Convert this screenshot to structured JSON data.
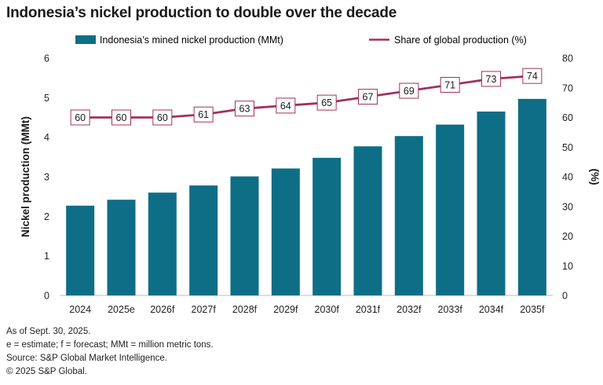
{
  "title": "Indonesia’s nickel production to double over the decade",
  "footnotes": [
    "As of Sept. 30, 2025.",
    "e = estimate; f = forecast; MMt = million metric tons.",
    "Source: S&P Global Market Intelligence.",
    "© 2025 S&P Global."
  ],
  "colors": {
    "bar": "#0e6e86",
    "line": "#a3305e",
    "label_border": "#a3305e"
  },
  "chart_data": {
    "type": "bar",
    "title": "Indonesia’s nickel production to double over the decade",
    "categories": [
      "2024",
      "2025e",
      "2026f",
      "2027f",
      "2028f",
      "2029f",
      "2030f",
      "2031f",
      "2032f",
      "2033f",
      "2034f",
      "2035f"
    ],
    "series": [
      {
        "name": "Indonesia’s mined nickel production (MMt)",
        "type": "bar",
        "axis": "left",
        "values": [
          2.27,
          2.42,
          2.6,
          2.78,
          3.01,
          3.21,
          3.48,
          3.77,
          4.03,
          4.32,
          4.65,
          4.97
        ]
      },
      {
        "name": "Share of global production (%)",
        "type": "line",
        "axis": "right",
        "values": [
          60,
          60,
          60,
          61,
          63,
          64,
          65,
          67,
          69,
          71,
          73,
          74
        ]
      }
    ],
    "ylabel": "Nickel production (MMt)",
    "y2label": "(%)",
    "ylim": [
      0,
      6
    ],
    "y2lim": [
      0,
      80
    ],
    "yticks": [
      0,
      1,
      2,
      3,
      4,
      5,
      6
    ],
    "y2ticks": [
      0,
      10,
      20,
      30,
      40,
      50,
      60,
      70,
      80
    ],
    "grid": false,
    "legend": "top"
  }
}
